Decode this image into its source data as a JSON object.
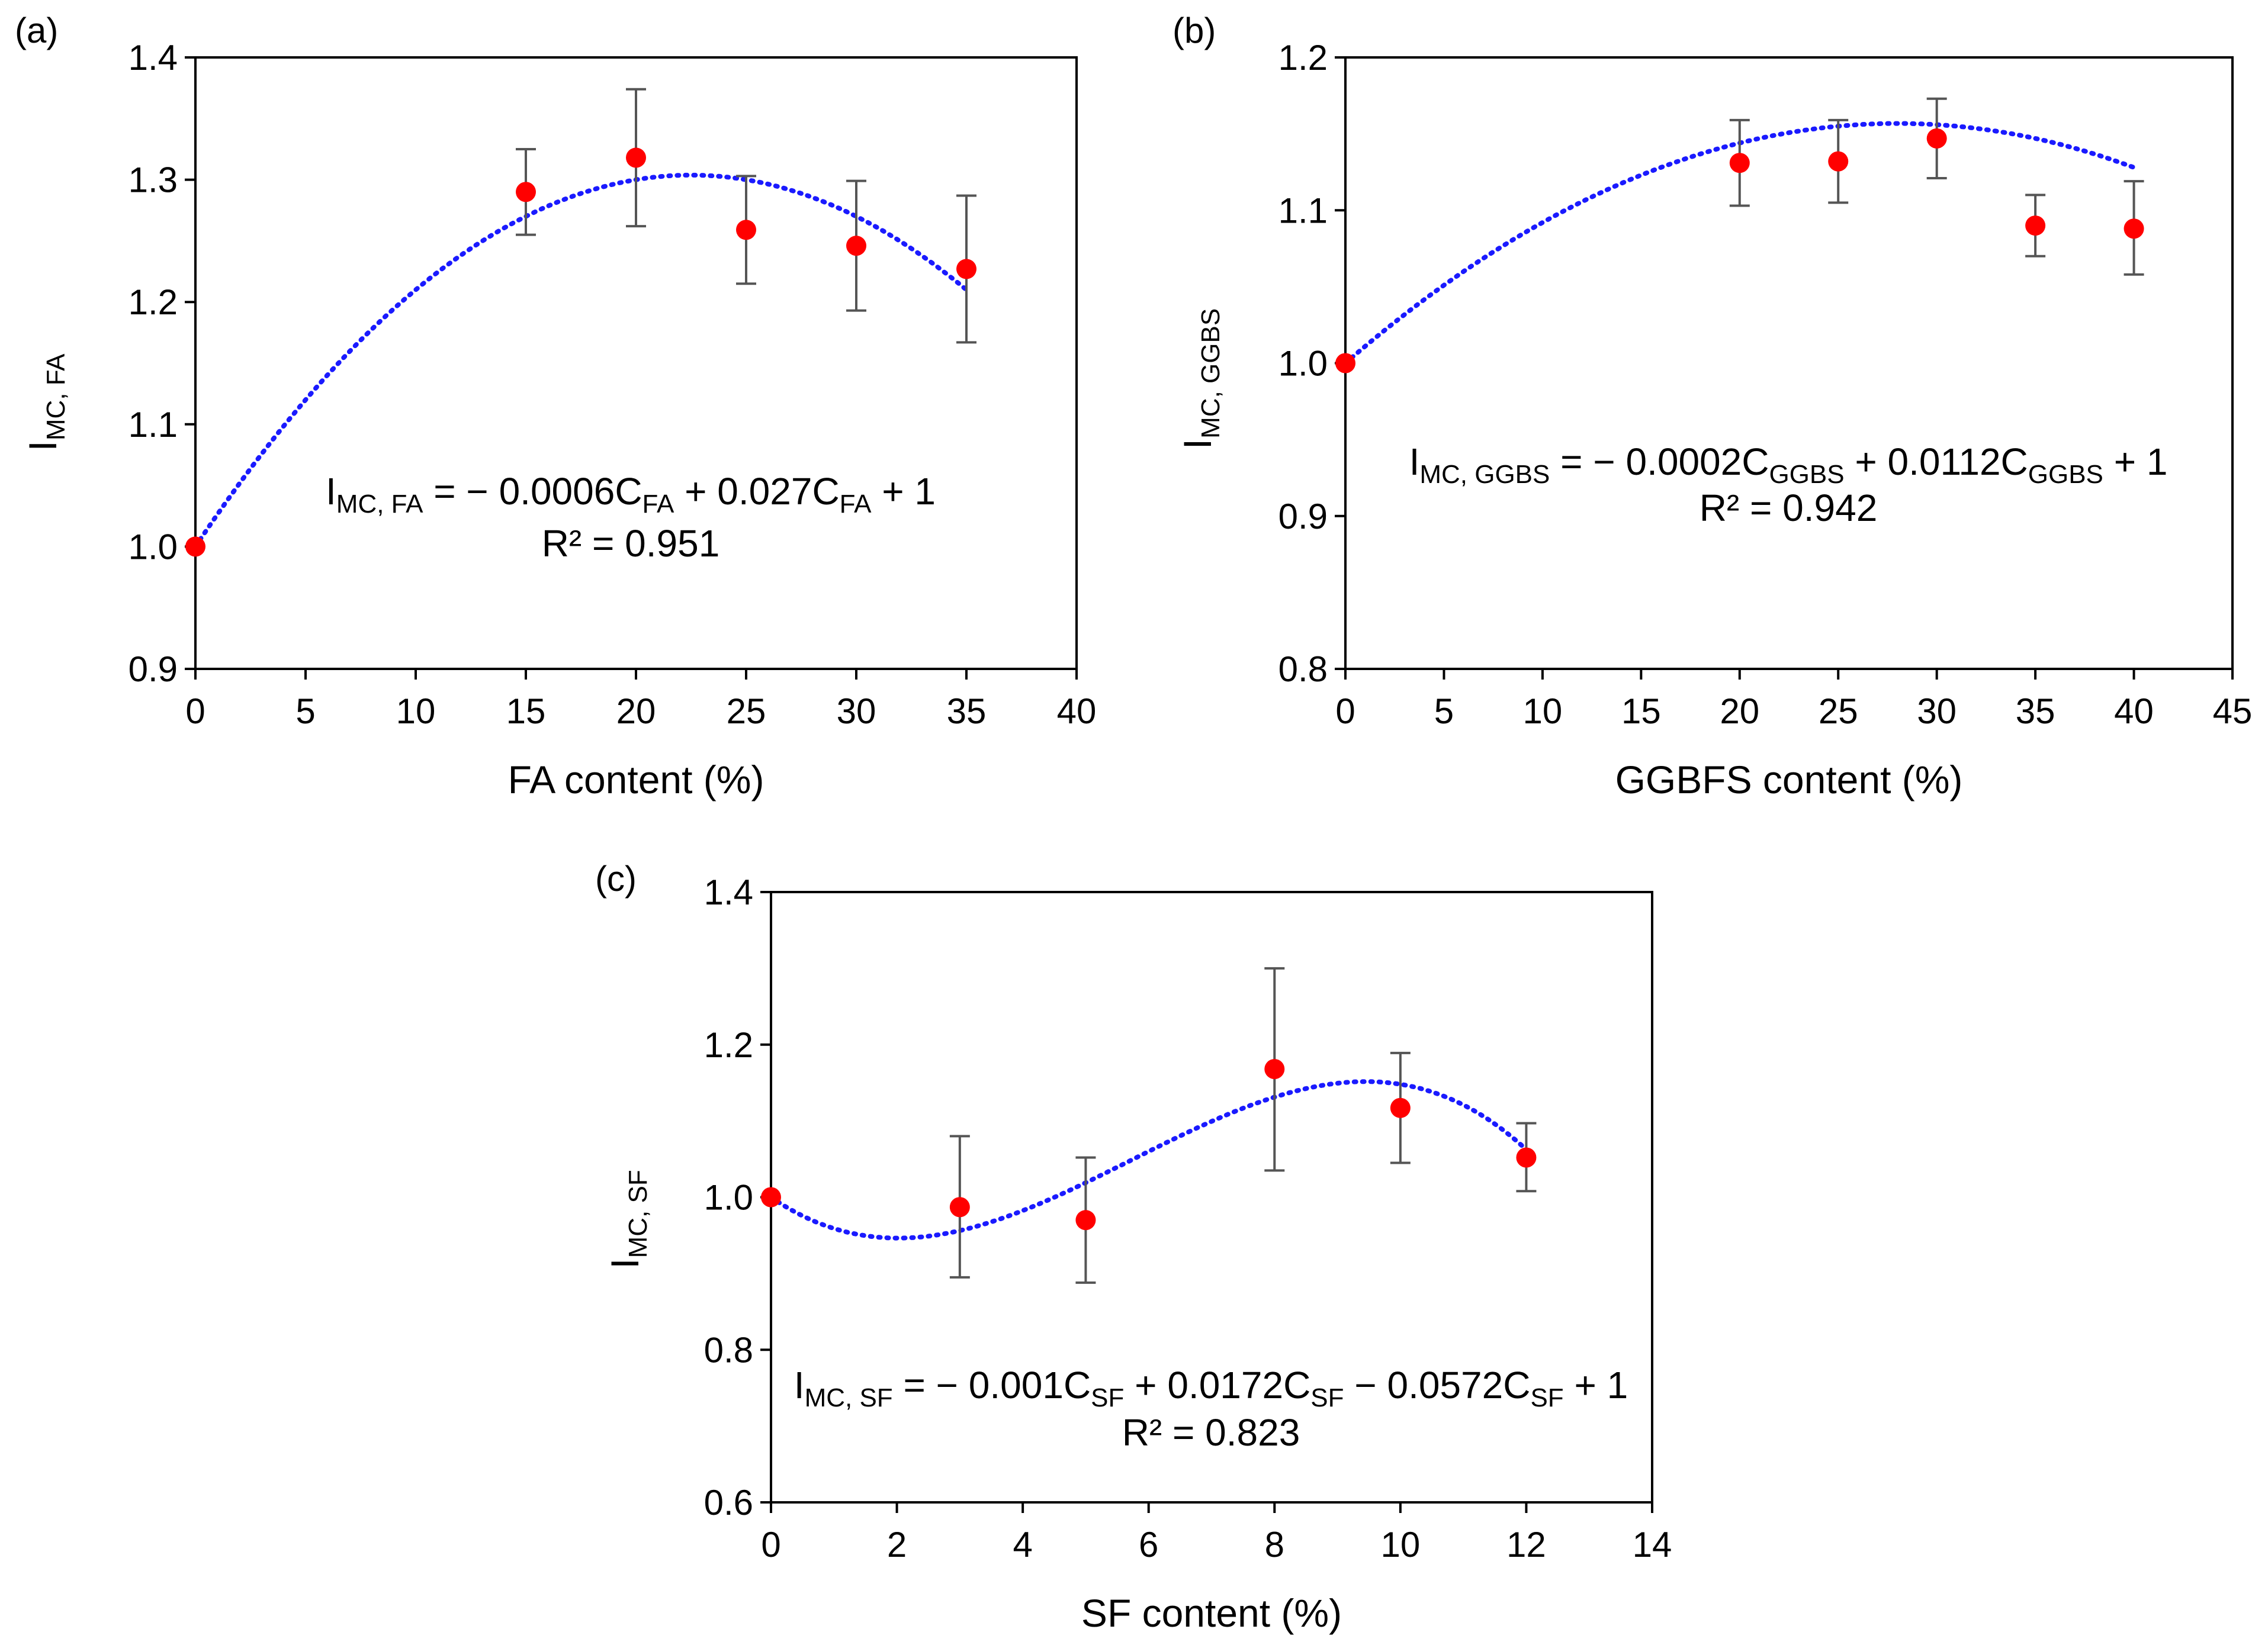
{
  "colors": {
    "point": "#ff0000",
    "trend": "#1a1aff",
    "error_bar": "#555555",
    "axis": "#000000"
  },
  "chart_data": [
    {
      "panel": "(a)",
      "type": "scatter",
      "xlabel": "FA content (%)",
      "ylabel": {
        "main": "I",
        "sub": "MC, FA"
      },
      "xlim": [
        0,
        40
      ],
      "ylim": [
        0.9,
        1.4
      ],
      "xticks": [
        "0",
        "5",
        "10",
        "15",
        "20",
        "25",
        "30",
        "35",
        "40"
      ],
      "yticks": [
        "0.9",
        "1.0",
        "1.1",
        "1.2",
        "1.3",
        "1.4"
      ],
      "points": [
        {
          "x": 0,
          "y": 1.0
        },
        {
          "x": 15,
          "y": 1.29,
          "err": [
            1.255,
            1.325
          ]
        },
        {
          "x": 20,
          "y": 1.318,
          "err": [
            1.262,
            1.374
          ]
        },
        {
          "x": 25,
          "y": 1.259,
          "err": [
            1.215,
            1.303
          ]
        },
        {
          "x": 30,
          "y": 1.246,
          "err": [
            1.193,
            1.299
          ]
        },
        {
          "x": 35,
          "y": 1.227,
          "err": [
            1.167,
            1.287
          ]
        }
      ],
      "trend_poly": [
        -0.0006,
        0.027,
        1
      ],
      "trend_range": [
        0,
        35
      ],
      "equation": {
        "segments": [
          {
            "t": "I"
          },
          {
            "t": "MC, FA",
            "sub": true
          },
          {
            "t": " = − 0.0006C"
          },
          {
            "t": "FA",
            "sub": true
          },
          {
            "t": " + 0.027C"
          },
          {
            "t": "FA",
            "sub": true
          },
          {
            "t": " + 1"
          }
        ],
        "r2": "R² = 0.951"
      }
    },
    {
      "panel": "(b)",
      "type": "scatter",
      "xlabel": "GGBFS content (%)",
      "ylabel": {
        "main": "I",
        "sub": "MC, GGBS"
      },
      "xlim": [
        0,
        45
      ],
      "ylim": [
        0.8,
        1.2
      ],
      "xticks": [
        "0",
        "5",
        "10",
        "15",
        "20",
        "25",
        "30",
        "35",
        "40",
        "45"
      ],
      "yticks": [
        "0.8",
        "0.9",
        "1.0",
        "1.1",
        "1.2"
      ],
      "points": [
        {
          "x": 0,
          "y": 1.0
        },
        {
          "x": 20,
          "y": 1.131,
          "err": [
            1.103,
            1.159
          ]
        },
        {
          "x": 25,
          "y": 1.132,
          "err": [
            1.105,
            1.159
          ]
        },
        {
          "x": 30,
          "y": 1.147,
          "err": [
            1.121,
            1.173
          ]
        },
        {
          "x": 35,
          "y": 1.09,
          "err": [
            1.07,
            1.11
          ]
        },
        {
          "x": 40,
          "y": 1.088,
          "err": [
            1.058,
            1.119
          ]
        }
      ],
      "trend_poly": [
        -0.0002,
        0.0112,
        1
      ],
      "trend_range": [
        0,
        40
      ],
      "equation": {
        "segments": [
          {
            "t": "I"
          },
          {
            "t": "MC, GGBS",
            "sub": true
          },
          {
            "t": " = − 0.0002C"
          },
          {
            "t": "GGBS",
            "sub": true
          },
          {
            "t": " + 0.0112C"
          },
          {
            "t": "GGBS",
            "sub": true
          },
          {
            "t": " + 1"
          }
        ],
        "r2": "R² = 0.942"
      }
    },
    {
      "panel": "(c)",
      "type": "scatter",
      "xlabel": "SF content (%)",
      "ylabel": {
        "main": "I",
        "sub": "MC, SF"
      },
      "xlim": [
        0,
        14
      ],
      "ylim": [
        0.6,
        1.4
      ],
      "xticks": [
        "0",
        "2",
        "4",
        "6",
        "8",
        "10",
        "12",
        "14"
      ],
      "yticks": [
        "0.6",
        "0.8",
        "1.0",
        "1.2",
        "1.4"
      ],
      "points": [
        {
          "x": 0,
          "y": 1.0
        },
        {
          "x": 3,
          "y": 0.987,
          "err": [
            0.895,
            1.08
          ]
        },
        {
          "x": 5,
          "y": 0.97,
          "err": [
            0.888,
            1.052
          ]
        },
        {
          "x": 8,
          "y": 1.168,
          "err": [
            1.035,
            1.3
          ]
        },
        {
          "x": 10,
          "y": 1.117,
          "err": [
            1.045,
            1.189
          ]
        },
        {
          "x": 12,
          "y": 1.052,
          "err": [
            1.008,
            1.097
          ]
        }
      ],
      "trend_poly": [
        -0.001,
        0.0172,
        -0.0572,
        1
      ],
      "trend_range": [
        0,
        12
      ],
      "equation": {
        "segments": [
          {
            "t": "I"
          },
          {
            "t": "MC, SF",
            "sub": true
          },
          {
            "t": " = − 0.001C"
          },
          {
            "t": "SF",
            "sub": true
          },
          {
            "t": " + 0.0172C"
          },
          {
            "t": "SF",
            "sub": true
          },
          {
            "t": " − 0.0572C"
          },
          {
            "t": "SF",
            "sub": true
          },
          {
            "t": " + 1"
          }
        ],
        "r2": "R² = 0.823"
      }
    }
  ]
}
